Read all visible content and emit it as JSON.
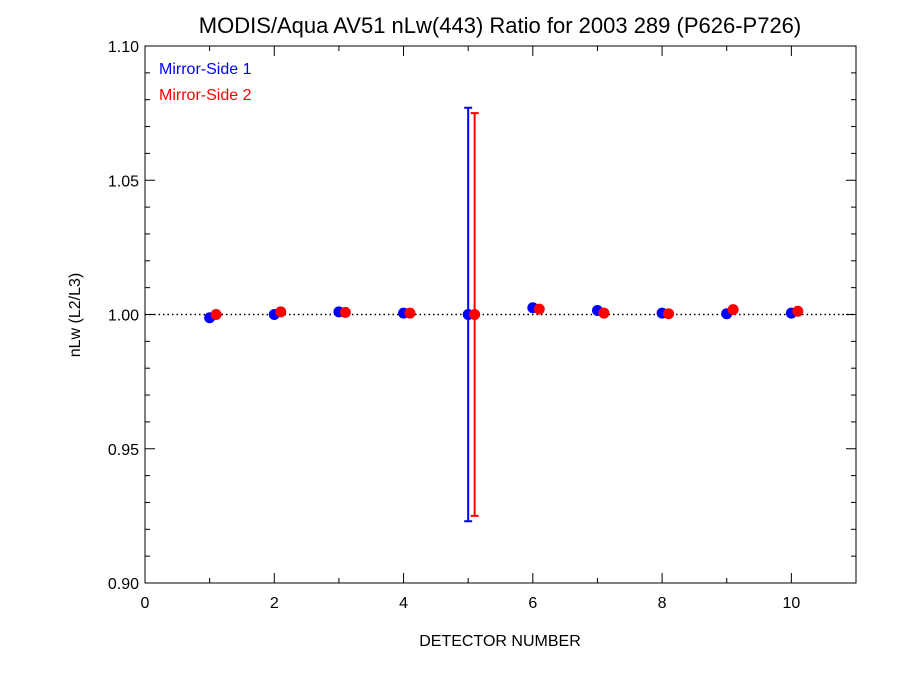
{
  "chart_data": {
    "type": "scatter",
    "title": "MODIS/Aqua AV51 nLw(443) Ratio for 2003 289 (P626-P726)",
    "xlabel": "DETECTOR NUMBER",
    "ylabel": "nLw (L2/L3)",
    "xlim": [
      0,
      11
    ],
    "ylim": [
      0.9,
      1.1
    ],
    "xticks": [
      0,
      2,
      4,
      6,
      8,
      10
    ],
    "xtick_labels": [
      "0",
      "2",
      "4",
      "6",
      "8",
      "10"
    ],
    "yticks": [
      0.9,
      0.95,
      1.0,
      1.05,
      1.1
    ],
    "ytick_labels": [
      "0.90",
      "0.95",
      "1.00",
      "1.05",
      "1.10"
    ],
    "reference_line": 1.0,
    "legend_position": "top-left",
    "series": [
      {
        "name": "Mirror-Side 1",
        "color": "#0000ff",
        "x": [
          1,
          2,
          3,
          4,
          5,
          6,
          7,
          8,
          9,
          10
        ],
        "y": [
          0.9988,
          1.0,
          1.001,
          1.0005,
          1.0,
          1.0025,
          1.0015,
          1.0005,
          1.0003,
          1.0005
        ],
        "error_bar": {
          "x": 5,
          "low": 0.923,
          "high": 1.077
        }
      },
      {
        "name": "Mirror-Side 2",
        "color": "#ff0000",
        "x": [
          1.1,
          2.1,
          3.1,
          4.1,
          5.1,
          6.1,
          7.1,
          8.1,
          9.1,
          10.1
        ],
        "y": [
          1.0,
          1.001,
          1.0008,
          1.0005,
          1.0,
          1.002,
          1.0005,
          1.0003,
          1.0018,
          1.0012
        ],
        "error_bar": {
          "x": 5.1,
          "low": 0.925,
          "high": 1.075
        }
      }
    ]
  }
}
